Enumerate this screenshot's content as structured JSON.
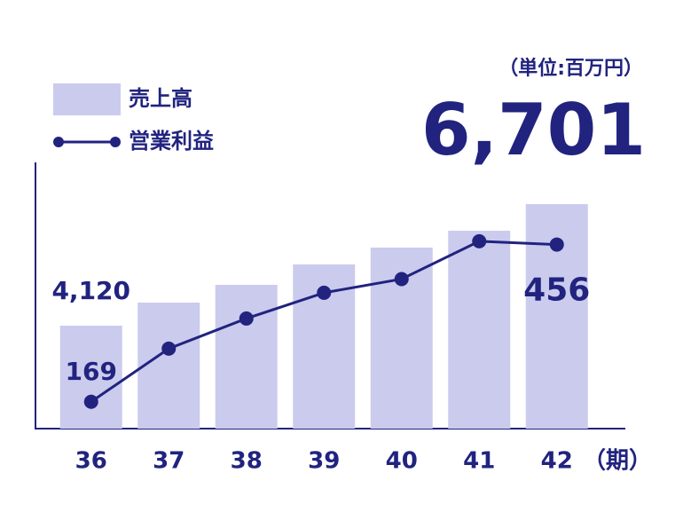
{
  "chart_data": {
    "type": "bar-line",
    "unit_label": "（単位:百万円）",
    "x_unit_label": "（期）",
    "categories": [
      "36",
      "37",
      "38",
      "39",
      "40",
      "41",
      "42"
    ],
    "series": [
      {
        "name": "売上高",
        "color": "#cbcbee",
        "values": [
          4120,
          4610,
          4987,
          5420,
          5778,
          6136,
          6701
        ],
        "value_labels": [
          "4,120",
          null,
          null,
          null,
          null,
          null,
          "6,701"
        ]
      },
      {
        "name": "営業利益",
        "color": "#21237f",
        "axis": "y2",
        "values": [
          169,
          266,
          321,
          368,
          393,
          462,
          456
        ],
        "value_labels": [
          "169",
          null,
          null,
          null,
          null,
          null,
          "456"
        ]
      }
    ],
    "ylim": [
      1935,
      7587
    ],
    "y2lim": [
      120,
      606
    ]
  }
}
